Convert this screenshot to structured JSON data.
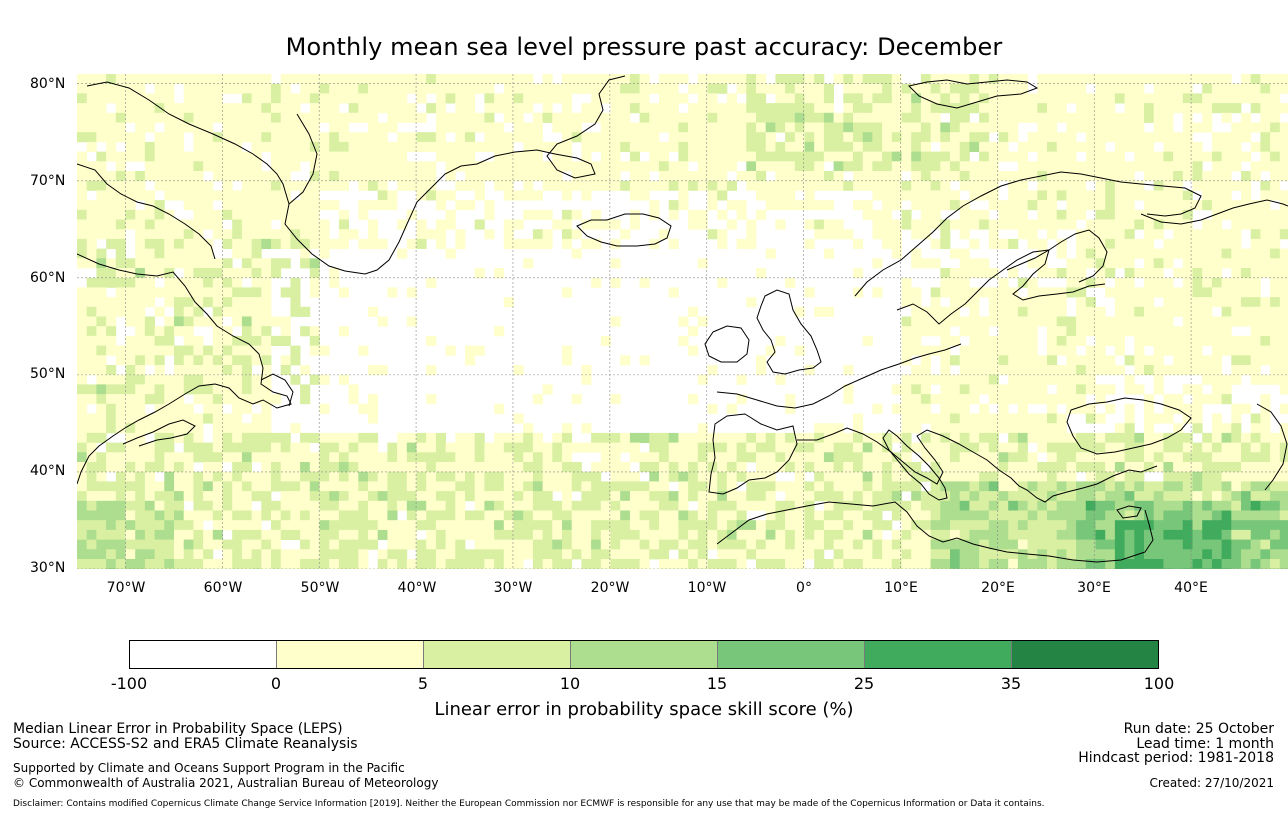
{
  "title": "Monthly mean sea level pressure past accuracy: December",
  "map": {
    "lat_labels": [
      "80°N",
      "70°N",
      "60°N",
      "50°N",
      "40°N",
      "30°N"
    ],
    "lon_labels": [
      "70°W",
      "60°W",
      "50°W",
      "40°W",
      "30°W",
      "20°W",
      "10°W",
      "0°",
      "10°E",
      "20°E",
      "30°E",
      "40°E"
    ],
    "lat_range": [
      30,
      81
    ],
    "lon_range": [
      -75,
      50
    ],
    "category_colors": [
      "#ffffff",
      "#ffffcc",
      "#d9f0a3",
      "#addd8e",
      "#78c679",
      "#41ab5d",
      "#238443"
    ],
    "land_color": "#000000"
  },
  "colorbar": {
    "ticks": [
      "-100",
      "0",
      "5",
      "10",
      "15",
      "25",
      "35",
      "100"
    ],
    "label": "Linear error in probability space skill score (%)"
  },
  "footer": {
    "left": {
      "line1": "Median Linear Error in Probability Space (LEPS)",
      "line2": "Source: ACCESS-S2 and ERA5 Climate Reanalysis",
      "line3": "Supported by Climate and Oceans Support Program in the Pacific",
      "line4": "© Commonwealth of Australia 2021, Australian Bureau of Meteorology"
    },
    "right": {
      "run_date": "Run date: 25 October",
      "lead_time": "Lead time: 1 month",
      "hindcast": "Hindcast period: 1981-2018",
      "created": "Created: 27/10/2021"
    },
    "disclaimer": "Disclaimer: Contains modified Copernicus Climate Change Service Information [2019]. Neither the European Commission nor ECMWF is responsible for any use that may be made of the Copernicus Information or Data it contains."
  }
}
